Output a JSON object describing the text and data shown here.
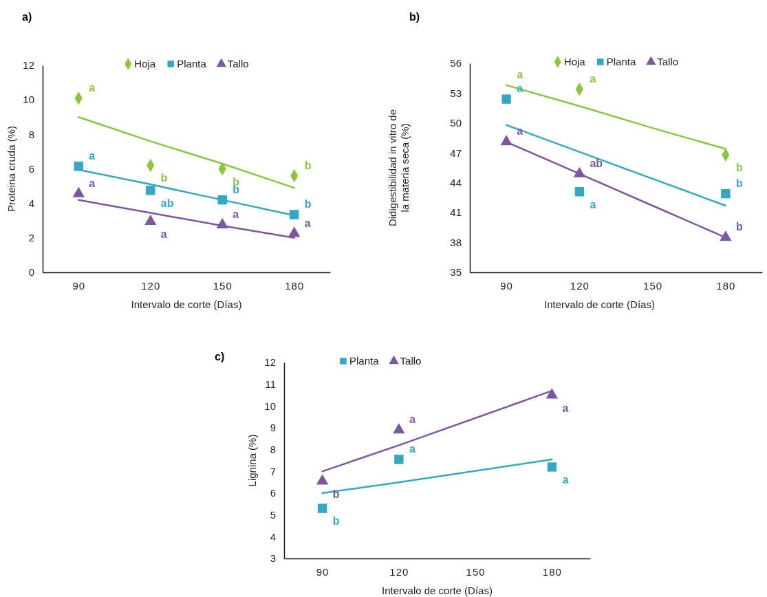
{
  "chart_data": [
    {
      "type": "scatter",
      "title": "a)",
      "xlabel": "Intervalo de corte (Días)",
      "ylabel": "Proteina cruda (%)",
      "xlim": [
        75,
        195
      ],
      "xticks": [
        90,
        120,
        150,
        180
      ],
      "ylim": [
        0,
        12
      ],
      "yticks": [
        0,
        2,
        4,
        6,
        8,
        10,
        12
      ],
      "legend": "top",
      "grid": false,
      "x": [
        90,
        120,
        150,
        180
      ],
      "series": [
        {
          "name": "Hoja",
          "type": "scatter",
          "marker": "diamond",
          "color": "#8cc63e",
          "values": [
            10.1,
            6.2,
            6.0,
            5.6
          ]
        },
        {
          "name": "Planta",
          "type": "scatter",
          "marker": "square",
          "color": "#33a8c4",
          "values": [
            6.15,
            4.75,
            4.2,
            3.35
          ]
        },
        {
          "name": "Tallo",
          "type": "scatter",
          "marker": "triangle",
          "color": "#7b57a3",
          "values": [
            4.55,
            2.95,
            2.75,
            2.25
          ]
        },
        {
          "type": "line",
          "color": "#8cc63e",
          "values": [
            9.0,
            7.6,
            6.3,
            4.9
          ]
        },
        {
          "type": "line",
          "color": "#33a8c4",
          "values": [
            5.95,
            5.1,
            4.2,
            3.3
          ]
        },
        {
          "type": "line",
          "color": "#7b57a3",
          "values": [
            4.2,
            3.45,
            2.7,
            2.0
          ]
        }
      ],
      "annotations": [
        {
          "text": "a",
          "x": 90,
          "y": 10.1
        },
        {
          "text": "b",
          "x": 120,
          "y": 6.2
        },
        {
          "text": "b",
          "x": 150,
          "y": 6.0
        },
        {
          "text": "b",
          "x": 180,
          "y": 5.6
        },
        {
          "text": "a",
          "x": 90,
          "y": 6.15
        },
        {
          "text": "ab",
          "x": 120,
          "y": 4.75
        },
        {
          "text": "b",
          "x": 150,
          "y": 4.2
        },
        {
          "text": "b",
          "x": 180,
          "y": 3.35
        },
        {
          "text": "a",
          "x": 90,
          "y": 4.55
        },
        {
          "text": "a",
          "x": 120,
          "y": 2.95
        },
        {
          "text": "a",
          "x": 150,
          "y": 2.75
        },
        {
          "text": "a",
          "x": 180,
          "y": 2.25
        }
      ]
    },
    {
      "type": "scatter",
      "title": "b)",
      "xlabel": "Intervalo de corte (Días)",
      "ylabel": "Didigestibilidad in vitro de la materia seca (%)",
      "xlim": [
        75,
        195
      ],
      "xticks": [
        90,
        120,
        150,
        180
      ],
      "ylim": [
        35,
        56
      ],
      "yticks": [
        35,
        38,
        41,
        44,
        47,
        50,
        53,
        56
      ],
      "legend": "top",
      "grid": false,
      "x": [
        90,
        120,
        150,
        180
      ],
      "series": [
        {
          "name": "Hoja",
          "type": "scatter",
          "marker": "diamond",
          "color": "#8cc63e",
          "values": [
            null,
            53.4,
            null,
            46.8
          ]
        },
        {
          "name": "Planta",
          "type": "scatter",
          "marker": "square",
          "color": "#33a8c4",
          "values": [
            52.4,
            43.1,
            null,
            42.9
          ]
        },
        {
          "name": "Tallo",
          "type": "scatter",
          "marker": "triangle",
          "color": "#7b57a3",
          "values": [
            48.1,
            44.9,
            null,
            38.5
          ]
        },
        {
          "type": "line",
          "color": "#8cc63e",
          "values": [
            53.8,
            51.7,
            49.5,
            47.4
          ]
        },
        {
          "type": "line",
          "color": "#33a8c4",
          "values": [
            49.8,
            47.1,
            44.4,
            41.7
          ]
        },
        {
          "type": "line",
          "color": "#7b57a3",
          "values": [
            48.1,
            44.9,
            41.7,
            38.5
          ]
        }
      ],
      "annotations": [
        {
          "text": "a",
          "x": 90,
          "y": 53.8
        },
        {
          "text": "a",
          "x": 120,
          "y": 53.4
        },
        {
          "text": "b",
          "x": 180,
          "y": 46.8
        },
        {
          "text": "a",
          "x": 90,
          "y": 52.4
        },
        {
          "text": "a",
          "x": 120,
          "y": 43.1
        },
        {
          "text": "b",
          "x": 180,
          "y": 42.9
        },
        {
          "text": "a",
          "x": 90,
          "y": 48.1
        },
        {
          "text": "ab",
          "x": 120,
          "y": 44.9
        },
        {
          "text": "b",
          "x": 180,
          "y": 38.5
        }
      ]
    },
    {
      "type": "scatter",
      "title": "c)",
      "xlabel": "Intervalo de corte (Días)",
      "ylabel": "Lignina (%)",
      "xlim": [
        75,
        195
      ],
      "xticks": [
        90,
        120,
        150,
        180
      ],
      "ylim": [
        3,
        12
      ],
      "yticks": [
        3,
        4,
        5,
        6,
        7,
        8,
        9,
        10,
        11,
        12
      ],
      "legend": "top",
      "grid": false,
      "x": [
        90,
        120,
        180
      ],
      "series": [
        {
          "name": "Planta",
          "type": "scatter",
          "marker": "square",
          "color": "#33a8c4",
          "values": [
            5.3,
            7.55,
            7.2
          ]
        },
        {
          "name": "Tallo",
          "type": "scatter",
          "marker": "triangle",
          "color": "#7b57a3",
          "values": [
            6.55,
            8.9,
            10.5
          ]
        },
        {
          "type": "line",
          "color": "#33a8c4",
          "values": [
            6.0,
            6.5,
            7.55
          ]
        },
        {
          "type": "line",
          "color": "#7b57a3",
          "values": [
            7.0,
            8.2,
            10.7
          ]
        }
      ],
      "annotations": [
        {
          "text": "b",
          "x": 90,
          "y": 5.3
        },
        {
          "text": "a",
          "x": 120,
          "y": 7.55
        },
        {
          "text": "a",
          "x": 180,
          "y": 7.2
        },
        {
          "text": "b",
          "x": 90,
          "y": 6.55
        },
        {
          "text": "a",
          "x": 120,
          "y": 8.9
        },
        {
          "text": "a",
          "x": 180,
          "y": 10.5
        }
      ]
    }
  ]
}
